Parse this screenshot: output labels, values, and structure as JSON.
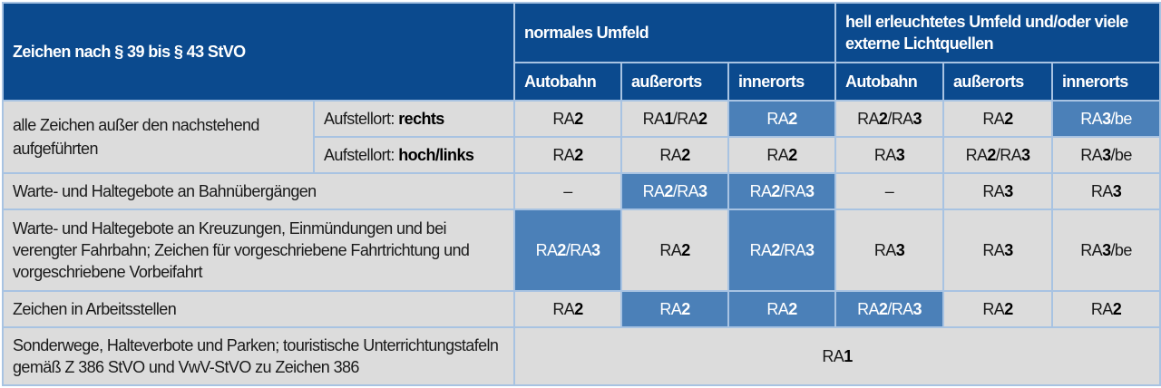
{
  "header": {
    "title": "Zeichen nach § 39 bis § 43 StVO",
    "group1": "normales Umfeld",
    "group2": "hell erleuchtetes Umfeld und/oder viele externe Lichtquellen",
    "columns": [
      "Autobahn",
      "außerorts",
      "innerorts",
      "Autobahn",
      "außerorts",
      "innerorts"
    ]
  },
  "colors": {
    "header": "#0b4a8e",
    "highlight": "#4b80b8",
    "cell": "#dcdcdc",
    "border": "#a8c3e2"
  },
  "rows": [
    {
      "label": "alle Zeichen außer den nachstehend aufgeführten",
      "sub": "Aufstellort: ",
      "sub_bold": "rechts",
      "values": [
        "RA2",
        "RA1/RA2",
        "RA2",
        "RA2/RA3",
        "RA2",
        "RA3/be"
      ],
      "highlight": [
        false,
        false,
        true,
        false,
        false,
        true
      ]
    },
    {
      "sub": "Aufstellort: ",
      "sub_bold": "hoch/links",
      "values": [
        "RA2",
        "RA2",
        "RA2",
        "RA3",
        "RA2/RA3",
        "RA3/be"
      ],
      "highlight": [
        false,
        false,
        false,
        false,
        false,
        false
      ]
    },
    {
      "label": "Warte- und Haltegebote an Bahnübergängen",
      "values": [
        "–",
        "RA2/RA3",
        "RA2/RA3",
        "–",
        "RA3",
        "RA3"
      ],
      "highlight": [
        false,
        true,
        true,
        false,
        false,
        false
      ]
    },
    {
      "label": "Warte- und Haltegebote an Kreuzungen, Einmündungen und bei verengter Fahrbahn; Zeichen für vorgeschriebene Fahrtrichtung und vorgeschriebene Vorbeifahrt",
      "values": [
        "RA2/RA3",
        "RA2",
        "RA2/RA3",
        "RA3",
        "RA3",
        "RA3/be"
      ],
      "highlight": [
        true,
        false,
        true,
        false,
        false,
        false
      ]
    },
    {
      "label": "Zeichen in Arbeitsstellen",
      "values": [
        "RA2",
        "RA2",
        "RA2",
        "RA2/RA3",
        "RA2",
        "RA2"
      ],
      "highlight": [
        false,
        true,
        true,
        true,
        false,
        false
      ]
    },
    {
      "label": "Sonderwege, Halteverbote und Parken; touristische Unterrichtungstafeln gemäß Z 386 StVO und VwV-StVO zu Zeichen 386",
      "values": [
        "RA1"
      ]
    }
  ]
}
